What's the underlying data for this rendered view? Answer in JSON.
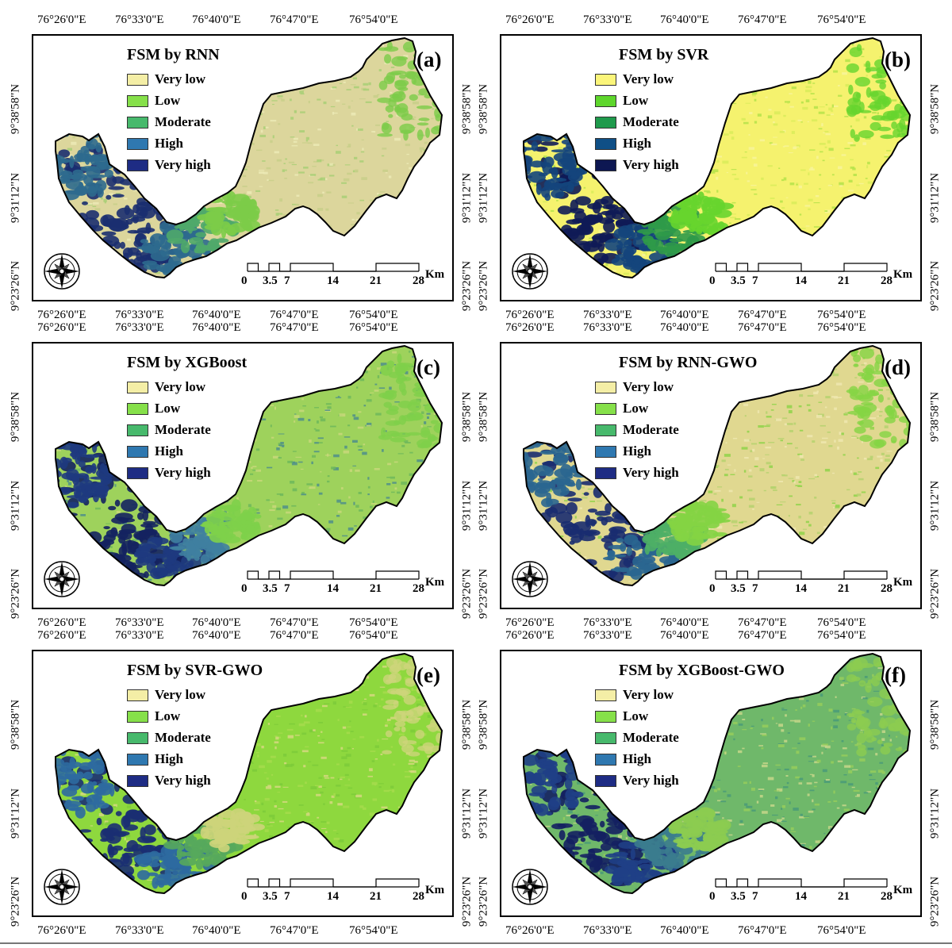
{
  "figure": {
    "longitude_labels": [
      "76°26'0\"E",
      "76°33'0\"E",
      "76°40'0\"E",
      "76°47'0\"E",
      "76°54'0\"E"
    ],
    "latitude_labels": [
      "9°38'58\"N",
      "9°31'12\"N",
      "9°23'26\"N"
    ],
    "legend_labels": [
      "Very low",
      "Low",
      "Moderate",
      "High",
      "Very high"
    ],
    "scale_labels": [
      "0",
      "3.5",
      "7",
      "14",
      "21",
      "28"
    ],
    "scale_unit": "Km",
    "north_arrow_icon": "compass-rose-icon",
    "panels": [
      {
        "letter": "(a)",
        "title": "FSM by RNN",
        "legend_colors": [
          "#f4eea6",
          "#86e04a",
          "#47b96c",
          "#2f78b0",
          "#1e2c84"
        ],
        "base_color": "#dcd69c",
        "texture_colors": [
          "#c8cf8a",
          "#a8cf76",
          "#eceab6"
        ],
        "zone_colors": [
          "#1b2f70",
          "#2d6a8e",
          "#4fa86a",
          "#7ccc48"
        ]
      },
      {
        "letter": "(b)",
        "title": "FSM by SVR",
        "legend_colors": [
          "#fbf57a",
          "#5ed62c",
          "#1f9a4c",
          "#0f4f86",
          "#0d1752"
        ],
        "base_color": "#f5f26e",
        "texture_colors": [
          "#d9ec5a",
          "#b5e34a",
          "#f8f59a"
        ],
        "zone_colors": [
          "#101b57",
          "#14457c",
          "#2f9a49",
          "#67d52e"
        ]
      },
      {
        "letter": "(c)",
        "title": "FSM by XGBoost",
        "legend_colors": [
          "#f4eea6",
          "#86e04a",
          "#47b96c",
          "#2f78b0",
          "#1e2c84"
        ],
        "base_color": "#9ed25c",
        "texture_colors": [
          "#6db85a",
          "#c8d87a",
          "#4f8f8a"
        ],
        "zone_colors": [
          "#142260",
          "#1e3a80",
          "#3f7fa0",
          "#7ed04a"
        ]
      },
      {
        "letter": "(d)",
        "title": "FSM by RNN-GWO",
        "legend_colors": [
          "#f4eea6",
          "#86e04a",
          "#47b96c",
          "#2f78b0",
          "#1e2c84"
        ],
        "base_color": "#e0d890",
        "texture_colors": [
          "#b5d26e",
          "#8fd44a",
          "#eee8b0"
        ],
        "zone_colors": [
          "#1a2c70",
          "#2a6690",
          "#4eaf66",
          "#84d444"
        ]
      },
      {
        "letter": "(e)",
        "title": "FSM by SVR-GWO",
        "legend_colors": [
          "#f4eea6",
          "#86e04a",
          "#47b96c",
          "#2f78b0",
          "#1e2c84"
        ],
        "base_color": "#8ed83e",
        "texture_colors": [
          "#a6dc4c",
          "#d6d880",
          "#7ccb3a"
        ],
        "zone_colors": [
          "#1b2f72",
          "#2e6aa0",
          "#56a85c",
          "#cdd47a"
        ]
      },
      {
        "letter": "(f)",
        "title": "FSM by XGBoost-GWO",
        "legend_colors": [
          "#f4eea6",
          "#86e04a",
          "#47b96c",
          "#2f78b0",
          "#1e2c84"
        ],
        "base_color": "#6fb86a",
        "texture_colors": [
          "#96cc5c",
          "#4a9a78",
          "#c7d68a"
        ],
        "zone_colors": [
          "#142062",
          "#1f3f86",
          "#3b7c8e",
          "#8ccc50"
        ]
      }
    ]
  }
}
